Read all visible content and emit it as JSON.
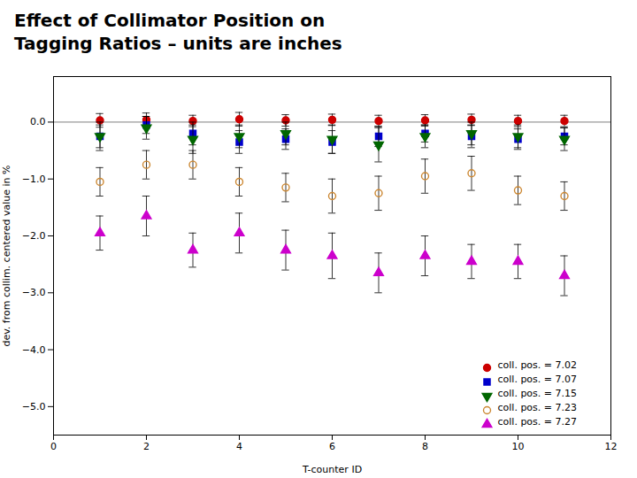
{
  "chart_data": {
    "type": "scatter",
    "title": "Effect of Collimator Position on\nTagging Ratios – units are inches",
    "x_label": "T-counter ID",
    "y_label": "dev. from collim. centered value in %",
    "xlim": [
      0,
      12
    ],
    "ylim": [
      -5.5,
      0.8
    ],
    "xticks": [
      0,
      2,
      4,
      6,
      8,
      10,
      12
    ],
    "yticks": [
      0,
      -1,
      -2,
      -3,
      -4,
      -5
    ],
    "hline": 0.0,
    "legend": "lower right",
    "grid": false,
    "series": [
      {
        "name": "coll. pos. = 7.02",
        "color": "#cc0000",
        "marker": "circle",
        "x": [
          1,
          2,
          3,
          4,
          5,
          6,
          7,
          8,
          9,
          10,
          11
        ],
        "values": [
          0.03,
          0.04,
          0.02,
          0.05,
          0.03,
          0.04,
          0.02,
          0.03,
          0.04,
          0.02,
          0.02
        ],
        "yerr": [
          0.12,
          0.12,
          0.1,
          0.12,
          0.1,
          0.1,
          0.1,
          0.1,
          0.1,
          0.1,
          0.1
        ]
      },
      {
        "name": "coll. pos. = 7.07",
        "color": "#0000cc",
        "marker": "square",
        "x": [
          1,
          2,
          3,
          4,
          5,
          6,
          7,
          8,
          9,
          10,
          11
        ],
        "values": [
          -0.25,
          -0.05,
          -0.2,
          -0.35,
          -0.3,
          -0.35,
          -0.25,
          -0.2,
          -0.25,
          -0.3,
          -0.25
        ],
        "yerr": [
          0.2,
          0.15,
          0.2,
          0.2,
          0.18,
          0.2,
          0.18,
          0.15,
          0.2,
          0.18,
          0.15
        ]
      },
      {
        "name": "coll. pos. = 7.15",
        "color": "#006600",
        "marker": "triangle-down",
        "x": [
          1,
          2,
          3,
          4,
          5,
          6,
          7,
          8,
          9,
          10,
          11
        ],
        "values": [
          -0.25,
          -0.1,
          -0.3,
          -0.25,
          -0.2,
          -0.3,
          -0.4,
          -0.25,
          -0.2,
          -0.25,
          -0.3
        ],
        "yerr": [
          0.25,
          0.2,
          0.25,
          0.2,
          0.2,
          0.25,
          0.3,
          0.2,
          0.2,
          0.2,
          0.2
        ]
      },
      {
        "name": "coll. pos. = 7.23",
        "color": "#cc8833",
        "marker": "circle-open",
        "x": [
          1,
          2,
          3,
          4,
          5,
          6,
          7,
          8,
          9,
          10,
          11
        ],
        "values": [
          -1.05,
          -0.75,
          -0.75,
          -1.05,
          -1.15,
          -1.3,
          -1.25,
          -0.95,
          -0.9,
          -1.2,
          -1.3
        ],
        "yerr": [
          0.25,
          0.25,
          0.25,
          0.25,
          0.25,
          0.3,
          0.3,
          0.3,
          0.3,
          0.25,
          0.25
        ]
      },
      {
        "name": "coll. pos. = 7.27",
        "color": "#cc00cc",
        "marker": "triangle-up",
        "x": [
          1,
          2,
          3,
          4,
          5,
          6,
          7,
          8,
          9,
          10,
          11
        ],
        "values": [
          -1.95,
          -1.65,
          -2.25,
          -1.95,
          -2.25,
          -2.35,
          -2.65,
          -2.35,
          -2.45,
          -2.45,
          -2.7
        ],
        "yerr": [
          0.3,
          0.35,
          0.3,
          0.35,
          0.35,
          0.4,
          0.35,
          0.35,
          0.3,
          0.3,
          0.35
        ]
      }
    ]
  }
}
